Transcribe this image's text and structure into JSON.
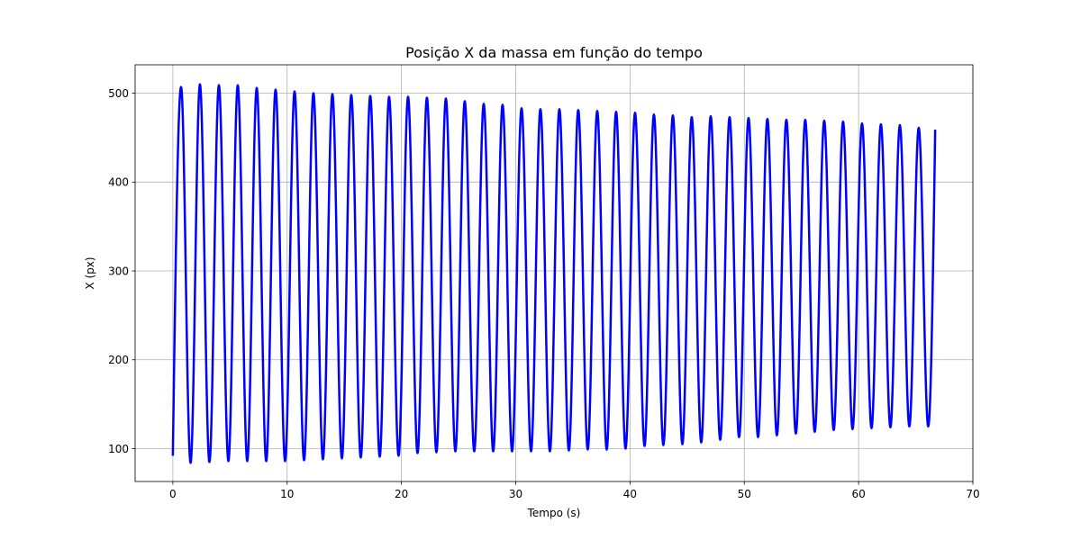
{
  "chart_data": {
    "type": "line",
    "title": "Posição X da massa em função do tempo",
    "xlabel": "Tempo (s)",
    "ylabel": "X (px)",
    "xlim": [
      -3.3,
      70
    ],
    "ylim": [
      63,
      532
    ],
    "xticks": [
      0,
      10,
      20,
      30,
      40,
      50,
      60,
      70
    ],
    "yticks": [
      100,
      200,
      300,
      400,
      500
    ],
    "grid": true,
    "legend": "none",
    "series": [
      {
        "color": "#0000ff",
        "period": 1.655,
        "x_start": 0,
        "x_end": 66.7,
        "start_value": 92,
        "end_value": 459,
        "peaks": [
          [
            0.72,
            507
          ],
          [
            2.37,
            510
          ],
          [
            4.03,
            509
          ],
          [
            5.68,
            509
          ],
          [
            7.34,
            506
          ],
          [
            8.99,
            504
          ],
          [
            10.65,
            502
          ],
          [
            12.3,
            500
          ],
          [
            13.96,
            499
          ],
          [
            15.61,
            498
          ],
          [
            17.27,
            497
          ],
          [
            18.92,
            496
          ],
          [
            20.58,
            496
          ],
          [
            22.23,
            495
          ],
          [
            23.89,
            494
          ],
          [
            25.54,
            491
          ],
          [
            27.2,
            488
          ],
          [
            28.85,
            487
          ],
          [
            30.51,
            483
          ],
          [
            32.16,
            482
          ],
          [
            33.82,
            482
          ],
          [
            35.47,
            481
          ],
          [
            37.13,
            480
          ],
          [
            38.78,
            479
          ],
          [
            40.44,
            478
          ],
          [
            42.09,
            476
          ],
          [
            43.75,
            475
          ],
          [
            45.4,
            473
          ],
          [
            47.06,
            474
          ],
          [
            48.71,
            473
          ],
          [
            50.37,
            472
          ],
          [
            52.02,
            471
          ],
          [
            53.68,
            470
          ],
          [
            55.33,
            470
          ],
          [
            56.99,
            469
          ],
          [
            58.64,
            468
          ],
          [
            60.3,
            466
          ],
          [
            61.95,
            465
          ],
          [
            63.61,
            464
          ],
          [
            65.26,
            461
          ]
        ],
        "troughs": [
          [
            1.55,
            84
          ],
          [
            3.2,
            85
          ],
          [
            4.86,
            86
          ],
          [
            6.51,
            86
          ],
          [
            8.17,
            86
          ],
          [
            9.82,
            86
          ],
          [
            11.48,
            87
          ],
          [
            13.13,
            88
          ],
          [
            14.79,
            89
          ],
          [
            16.44,
            90
          ],
          [
            18.1,
            91
          ],
          [
            19.75,
            92
          ],
          [
            21.41,
            95
          ],
          [
            23.06,
            96
          ],
          [
            24.72,
            97
          ],
          [
            26.37,
            97
          ],
          [
            28.03,
            97
          ],
          [
            29.68,
            97
          ],
          [
            31.34,
            97
          ],
          [
            32.99,
            97
          ],
          [
            34.65,
            98
          ],
          [
            36.3,
            99
          ],
          [
            37.96,
            99
          ],
          [
            39.61,
            100
          ],
          [
            41.27,
            103
          ],
          [
            42.92,
            104
          ],
          [
            44.58,
            105
          ],
          [
            46.23,
            107
          ],
          [
            47.89,
            110
          ],
          [
            49.54,
            113
          ],
          [
            51.2,
            113
          ],
          [
            52.85,
            115
          ],
          [
            54.51,
            117
          ],
          [
            56.16,
            119
          ],
          [
            57.82,
            121
          ],
          [
            59.47,
            122
          ],
          [
            61.13,
            123
          ],
          [
            62.78,
            124
          ],
          [
            64.44,
            125
          ],
          [
            66.09,
            125
          ]
        ]
      }
    ]
  }
}
